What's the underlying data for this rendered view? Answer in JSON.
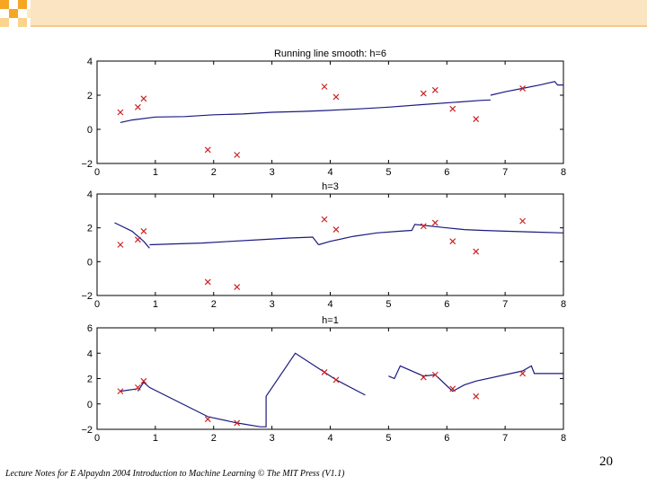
{
  "slide": {
    "page_number": "20",
    "footer": "Lecture Notes for E Alpaydın 2004 Introduction to Machine Learning © The MIT Press (V1.1)",
    "accent_colors": [
      "#f6a623",
      "#fbd38f",
      "#fde9c2"
    ]
  },
  "chart_data": [
    {
      "type": "line",
      "title": "Running line smooth: h=6",
      "xlim": [
        0,
        8
      ],
      "ylim": [
        -2,
        4
      ],
      "xticks": [
        0,
        1,
        2,
        3,
        4,
        5,
        6,
        7,
        8
      ],
      "yticks": [
        -2,
        0,
        2,
        4
      ],
      "points": {
        "name": "data",
        "color": "#cc2222",
        "x": [
          0.4,
          0.7,
          0.8,
          1.9,
          2.4,
          3.9,
          4.1,
          5.6,
          5.8,
          6.1,
          6.5,
          7.3
        ],
        "y": [
          1.0,
          1.3,
          1.8,
          -1.2,
          -1.5,
          2.5,
          1.9,
          2.1,
          2.3,
          1.2,
          0.6,
          2.4
        ]
      },
      "fit": {
        "name": "smooth",
        "color": "#1a1a80",
        "segments": [
          [
            [
              0.4,
              0.4
            ],
            [
              0.6,
              0.55
            ],
            [
              1.0,
              0.72
            ],
            [
              1.5,
              0.75
            ],
            [
              2.0,
              0.85
            ],
            [
              2.5,
              0.9
            ],
            [
              3.0,
              1.0
            ],
            [
              3.5,
              1.05
            ],
            [
              3.9,
              1.1
            ],
            [
              4.5,
              1.2
            ],
            [
              5.0,
              1.3
            ],
            [
              5.6,
              1.45
            ],
            [
              6.2,
              1.6
            ],
            [
              6.6,
              1.7
            ],
            [
              6.75,
              1.72
            ]
          ],
          [
            [
              6.75,
              2.0
            ],
            [
              7.0,
              2.2
            ],
            [
              7.3,
              2.4
            ],
            [
              7.6,
              2.6
            ],
            [
              7.85,
              2.8
            ],
            [
              7.9,
              2.6
            ],
            [
              8.0,
              2.6
            ]
          ]
        ]
      }
    },
    {
      "type": "line",
      "title": "h=3",
      "xlim": [
        0,
        8
      ],
      "ylim": [
        -2,
        4
      ],
      "xticks": [
        0,
        1,
        2,
        3,
        4,
        5,
        6,
        7,
        8
      ],
      "yticks": [
        -2,
        0,
        2,
        4
      ],
      "points": {
        "name": "data",
        "color": "#cc2222",
        "x": [
          0.4,
          0.7,
          0.8,
          1.9,
          2.4,
          3.9,
          4.1,
          5.6,
          5.8,
          6.1,
          6.5,
          7.3
        ],
        "y": [
          1.0,
          1.3,
          1.8,
          -1.2,
          -1.5,
          2.5,
          1.9,
          2.1,
          2.3,
          1.2,
          0.6,
          2.4
        ]
      },
      "fit": {
        "name": "smooth",
        "color": "#1a1a80",
        "segments": [
          [
            [
              0.3,
              2.3
            ],
            [
              0.6,
              1.8
            ],
            [
              0.8,
              1.2
            ],
            [
              0.9,
              0.8
            ]
          ],
          [
            [
              0.9,
              1.0
            ],
            [
              1.3,
              1.05
            ],
            [
              1.8,
              1.1
            ],
            [
              2.3,
              1.2
            ],
            [
              2.8,
              1.3
            ],
            [
              3.3,
              1.4
            ],
            [
              3.7,
              1.45
            ],
            [
              3.8,
              1.0
            ]
          ],
          [
            [
              3.8,
              1.0
            ],
            [
              4.0,
              1.2
            ],
            [
              4.4,
              1.5
            ],
            [
              4.8,
              1.7
            ],
            [
              5.2,
              1.8
            ],
            [
              5.4,
              1.85
            ],
            [
              5.45,
              2.2
            ],
            [
              6.0,
              2.0
            ],
            [
              6.3,
              1.9
            ],
            [
              6.6,
              1.85
            ],
            [
              7.0,
              1.8
            ],
            [
              7.5,
              1.75
            ],
            [
              8.0,
              1.7
            ]
          ]
        ]
      }
    },
    {
      "type": "line",
      "title": "h=1",
      "xlim": [
        0,
        8
      ],
      "ylim": [
        -2,
        6
      ],
      "xticks": [
        0,
        1,
        2,
        3,
        4,
        5,
        6,
        7,
        8
      ],
      "yticks": [
        -2,
        0,
        2,
        4,
        6
      ],
      "points": {
        "name": "data",
        "color": "#cc2222",
        "x": [
          0.4,
          0.7,
          0.8,
          1.9,
          2.4,
          3.9,
          4.1,
          5.6,
          5.8,
          6.1,
          6.5,
          7.3
        ],
        "y": [
          1.0,
          1.3,
          1.8,
          -1.2,
          -1.5,
          2.5,
          1.9,
          2.1,
          2.3,
          1.2,
          0.6,
          2.4
        ]
      },
      "fit": {
        "name": "smooth",
        "color": "#1a1a80",
        "segments": [
          [
            [
              0.4,
              1.0
            ],
            [
              0.7,
              1.2
            ]
          ],
          [
            [
              0.7,
              1.0
            ],
            [
              0.8,
              1.7
            ],
            [
              0.9,
              1.3
            ],
            [
              1.9,
              -1.0
            ]
          ],
          [
            [
              1.9,
              -1.0
            ],
            [
              2.4,
              -1.5
            ],
            [
              2.8,
              -1.8
            ],
            [
              2.9,
              -1.8
            ],
            [
              2.9,
              0.6
            ],
            [
              3.4,
              4.0
            ],
            [
              3.9,
              2.5
            ],
            [
              4.1,
              1.9
            ],
            [
              4.6,
              0.7
            ]
          ],
          [
            [
              5.0,
              2.2
            ],
            [
              5.1,
              2.0
            ],
            [
              5.2,
              3.0
            ],
            [
              5.6,
              2.2
            ],
            [
              5.8,
              2.3
            ],
            [
              6.1,
              1.0
            ],
            [
              6.3,
              1.5
            ],
            [
              6.5,
              1.8
            ],
            [
              7.3,
              2.6
            ],
            [
              7.45,
              3.0
            ],
            [
              7.5,
              2.4
            ],
            [
              8.0,
              2.4
            ]
          ]
        ]
      }
    }
  ]
}
